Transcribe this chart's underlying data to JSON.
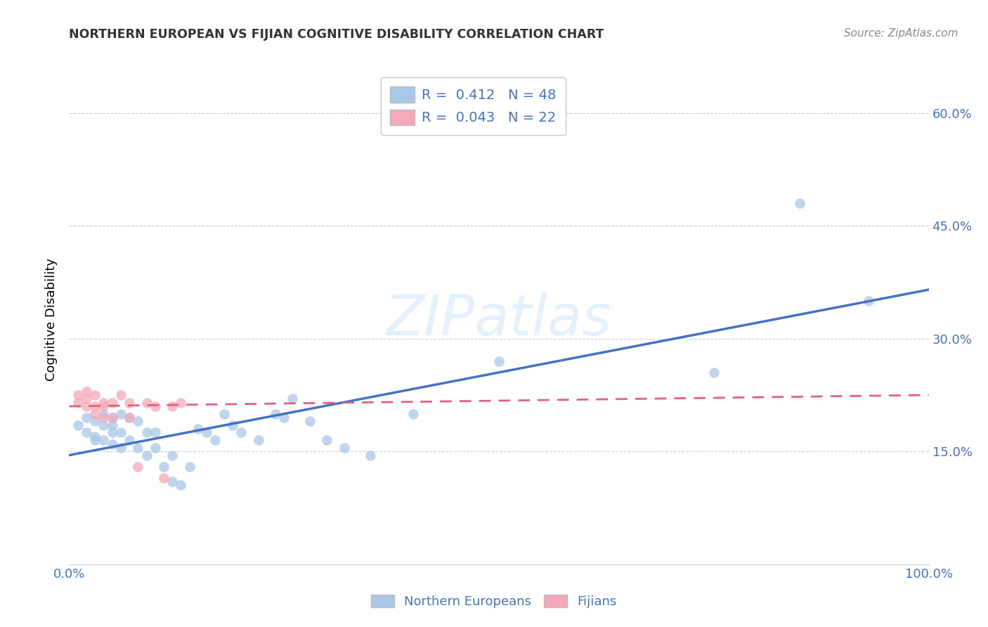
{
  "title": "NORTHERN EUROPEAN VS FIJIAN COGNITIVE DISABILITY CORRELATION CHART",
  "source": "Source: ZipAtlas.com",
  "ylabel": "Cognitive Disability",
  "xlim": [
    0.0,
    1.0
  ],
  "ylim": [
    0.0,
    0.65
  ],
  "yticks": [
    0.15,
    0.3,
    0.45,
    0.6
  ],
  "ytick_labels": [
    "15.0%",
    "30.0%",
    "45.0%",
    "60.0%"
  ],
  "blue_color": "#a8c8e8",
  "pink_color": "#f4a8b8",
  "blue_line_color": "#4472c4",
  "pink_line_color": "#e06080",
  "text_color": "#4472c4",
  "watermark_color": "#ddeeff",
  "ne_x": [
    0.01,
    0.02,
    0.02,
    0.03,
    0.03,
    0.03,
    0.04,
    0.04,
    0.04,
    0.05,
    0.05,
    0.05,
    0.05,
    0.06,
    0.06,
    0.06,
    0.07,
    0.07,
    0.08,
    0.08,
    0.09,
    0.09,
    0.1,
    0.1,
    0.11,
    0.12,
    0.12,
    0.13,
    0.14,
    0.15,
    0.16,
    0.17,
    0.18,
    0.19,
    0.2,
    0.22,
    0.24,
    0.25,
    0.26,
    0.28,
    0.3,
    0.32,
    0.35,
    0.4,
    0.5,
    0.75,
    0.85,
    0.93
  ],
  "ne_y": [
    0.185,
    0.195,
    0.175,
    0.19,
    0.17,
    0.165,
    0.2,
    0.185,
    0.165,
    0.195,
    0.185,
    0.175,
    0.16,
    0.2,
    0.175,
    0.155,
    0.195,
    0.165,
    0.19,
    0.155,
    0.175,
    0.145,
    0.175,
    0.155,
    0.13,
    0.145,
    0.11,
    0.105,
    0.13,
    0.18,
    0.175,
    0.165,
    0.2,
    0.185,
    0.175,
    0.165,
    0.2,
    0.195,
    0.22,
    0.19,
    0.165,
    0.155,
    0.145,
    0.2,
    0.27,
    0.255,
    0.48,
    0.35
  ],
  "fij_x": [
    0.01,
    0.01,
    0.02,
    0.02,
    0.02,
    0.03,
    0.03,
    0.03,
    0.04,
    0.04,
    0.04,
    0.05,
    0.05,
    0.06,
    0.07,
    0.07,
    0.08,
    0.09,
    0.1,
    0.11,
    0.12,
    0.13
  ],
  "fij_y": [
    0.225,
    0.215,
    0.23,
    0.22,
    0.21,
    0.225,
    0.21,
    0.2,
    0.215,
    0.21,
    0.195,
    0.215,
    0.195,
    0.225,
    0.215,
    0.195,
    0.13,
    0.215,
    0.21,
    0.115,
    0.21,
    0.215
  ],
  "ne_trend_x": [
    0.0,
    1.0
  ],
  "ne_trend_y": [
    0.145,
    0.365
  ],
  "fij_trend_x": [
    0.0,
    1.0
  ],
  "fij_trend_y": [
    0.21,
    0.225
  ],
  "legend1_label": "R =  0.412   N = 48",
  "legend2_label": "R =  0.043   N = 22",
  "bottom_legend1": "Northern Europeans",
  "bottom_legend2": "Fijians"
}
